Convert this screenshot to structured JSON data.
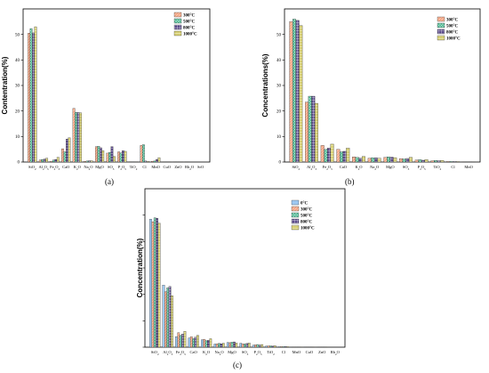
{
  "chart_data": [
    {
      "panel": "(a)",
      "type": "bar",
      "ylabel": "Contentration(%)",
      "ylim": [
        0,
        60
      ],
      "yticks": [
        0,
        10,
        20,
        30,
        40,
        50
      ],
      "categories": [
        "SiO2",
        "Al2O3",
        "Fe2O3",
        "CaO",
        "K2O",
        "Na2O",
        "MgO",
        "SO3",
        "P2O5",
        "TiO2",
        "Cl",
        "MnO",
        "CuO",
        "ZnO",
        "Rb2O",
        "SrO"
      ],
      "category_labels": [
        [
          "SiO",
          "2"
        ],
        [
          "Al",
          "2",
          "O",
          "3"
        ],
        [
          "Fe",
          "2",
          "O",
          "3"
        ],
        [
          "CaO"
        ],
        [
          "K",
          "2",
          "O"
        ],
        [
          "Na",
          "2",
          "O"
        ],
        [
          "MgO"
        ],
        [
          "SO",
          "3"
        ],
        [
          "P",
          "2",
          "O",
          "5"
        ],
        [
          "TiO",
          "2"
        ],
        [
          "Cl"
        ],
        [
          "MnO"
        ],
        [
          "CuO"
        ],
        [
          "ZnO"
        ],
        [
          "Rb",
          "2",
          "O"
        ],
        [
          "SrO"
        ]
      ],
      "series": [
        {
          "name": "300°C",
          "values": [
            50.5,
            0.8,
            0.3,
            5.2,
            21.0,
            0.3,
            6.0,
            3.5,
            4.0,
            0.1,
            6.5,
            0.3,
            0.1,
            0.1,
            0.1,
            0.0
          ]
        },
        {
          "name": "500°C",
          "values": [
            52.3,
            1.0,
            0.8,
            4.0,
            19.5,
            0.4,
            6.2,
            3.8,
            3.6,
            0.1,
            6.8,
            0.4,
            0.1,
            0.1,
            0.1,
            0.0
          ]
        },
        {
          "name": "800°C",
          "values": [
            50.6,
            1.2,
            1.0,
            9.0,
            19.4,
            0.5,
            5.6,
            6.0,
            4.5,
            0.1,
            0.4,
            1.0,
            0.1,
            0.1,
            0.0,
            0.0
          ]
        },
        {
          "name": "1000°C",
          "values": [
            53.0,
            1.5,
            1.8,
            9.5,
            19.3,
            0.5,
            4.5,
            2.2,
            4.2,
            0.1,
            0.3,
            1.7,
            0.1,
            0.1,
            0.0,
            0.0
          ]
        }
      ]
    },
    {
      "panel": "(b)",
      "type": "bar",
      "ylabel": "Concentrations(%)",
      "ylim": [
        0,
        60
      ],
      "yticks": [
        0,
        10,
        20,
        30,
        40,
        50
      ],
      "categories": [
        "SiO2",
        "Al2O3",
        "Fe2O3",
        "CaO",
        "K2O",
        "Na2O",
        "MgO",
        "SO3",
        "P2O5",
        "TiO2",
        "Cl",
        "MnO"
      ],
      "category_labels": [
        [
          "SiO",
          "2"
        ],
        [
          "Al",
          "2",
          "O",
          "3"
        ],
        [
          "Fe",
          "2",
          "O",
          "3"
        ],
        [
          "CaO"
        ],
        [
          "K",
          "2",
          "O"
        ],
        [
          "Na",
          "2",
          "O"
        ],
        [
          "MgO"
        ],
        [
          "SO",
          "3"
        ],
        [
          "P",
          "2",
          "O",
          "5"
        ],
        [
          "TiO",
          "2"
        ],
        [
          "Cl"
        ],
        [
          "MnO"
        ]
      ],
      "series": [
        {
          "name": "300°C",
          "values": [
            55.0,
            23.5,
            6.5,
            5.0,
            2.0,
            1.5,
            1.8,
            1.3,
            0.8,
            0.5,
            0.2,
            0.1
          ]
        },
        {
          "name": "500°C",
          "values": [
            56.0,
            25.8,
            5.0,
            4.0,
            1.8,
            1.7,
            2.0,
            1.2,
            0.9,
            0.6,
            0.2,
            0.1
          ]
        },
        {
          "name": "800°C",
          "values": [
            55.5,
            25.8,
            5.5,
            4.2,
            1.5,
            1.6,
            1.9,
            1.4,
            0.7,
            0.5,
            0.2,
            0.1
          ]
        },
        {
          "name": "1000°C",
          "values": [
            53.5,
            23.0,
            7.0,
            5.5,
            2.2,
            1.5,
            1.7,
            1.8,
            0.9,
            0.6,
            0.2,
            0.1
          ]
        }
      ]
    },
    {
      "panel": "(c)",
      "type": "bar",
      "ylabel": "Concentration(%)",
      "ylim": [
        0,
        60
      ],
      "yticks": [
        0,
        10,
        20,
        30,
        40,
        50
      ],
      "categories": [
        "SiO2",
        "Al2O3",
        "Fe2O3",
        "CaO",
        "K2O",
        "Na2O",
        "MgO",
        "SO3",
        "P2O5",
        "TiO2",
        "Cl",
        "MnO",
        "CuO",
        "ZnO",
        "Rb2O"
      ],
      "category_labels": [
        [
          "SiO",
          "2"
        ],
        [
          "Al",
          "2",
          "O",
          "3"
        ],
        [
          "Fe",
          "2",
          "O",
          "3"
        ],
        [
          "CaO"
        ],
        [
          "K",
          "2",
          "O"
        ],
        [
          "Na",
          "2",
          "O"
        ],
        [
          "MgO"
        ],
        [
          "SO",
          "3"
        ],
        [
          "P",
          "2",
          "O",
          "5"
        ],
        [
          "TiO",
          "2"
        ],
        [
          "Cl"
        ],
        [
          "MnO"
        ],
        [
          "CuO"
        ],
        [
          "ZnO"
        ],
        [
          "Rb",
          "2",
          "O"
        ]
      ],
      "series": [
        {
          "name": "0°C",
          "values": [
            48.5,
            23.5,
            4.0,
            3.5,
            2.8,
            1.2,
            1.8,
            1.5,
            0.8,
            0.4,
            0.2,
            0.1,
            0.1,
            0.1,
            0.0
          ]
        },
        {
          "name": "300°C",
          "values": [
            47.5,
            21.0,
            5.5,
            4.0,
            3.0,
            1.3,
            1.7,
            1.3,
            0.9,
            0.5,
            0.2,
            0.1,
            0.1,
            0.1,
            0.0
          ]
        },
        {
          "name": "500°C",
          "values": [
            49.0,
            22.5,
            4.5,
            3.2,
            2.5,
            1.4,
            1.9,
            1.2,
            1.0,
            0.5,
            0.2,
            0.1,
            0.1,
            0.1,
            0.0
          ]
        },
        {
          "name": "800°C",
          "values": [
            48.8,
            23.0,
            5.0,
            3.8,
            2.6,
            1.3,
            2.0,
            1.4,
            0.8,
            0.4,
            0.2,
            0.1,
            0.1,
            0.1,
            0.0
          ]
        },
        {
          "name": "1000°C",
          "values": [
            47.0,
            19.5,
            6.0,
            4.5,
            3.2,
            1.5,
            1.6,
            1.6,
            1.0,
            0.6,
            0.2,
            0.1,
            0.1,
            0.1,
            0.0
          ]
        }
      ]
    }
  ],
  "palette": {
    "0°C": "#9ec9f2",
    "300°C": "#f4a583",
    "500°C": "#43b58c",
    "800°C": "#5b4a8b",
    "1000°C": "#d6cf73"
  }
}
